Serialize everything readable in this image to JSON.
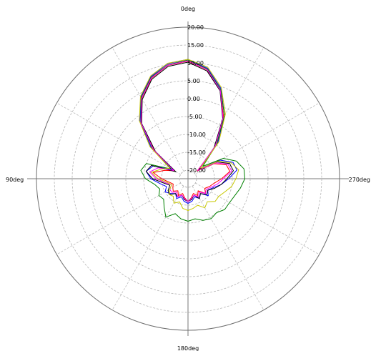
{
  "chart_data": {
    "type": "line",
    "coordinate_system": "polar",
    "angle_unit": "deg",
    "angle_direction": "counter-clockwise",
    "zero_angle_position": "top",
    "angle_labels": [
      "0deg",
      "90deg",
      "180deg",
      "270deg"
    ],
    "radial_range": [
      -20,
      20
    ],
    "radial_ticks": [
      "20.00",
      "15.00",
      "10.00",
      "5.00",
      "0.00",
      "-5.00",
      "-10.00",
      "-15.00",
      "-20.00"
    ],
    "grid": true,
    "angles": [
      0,
      10,
      20,
      30,
      40,
      50,
      60,
      70,
      80,
      90,
      100,
      110,
      120,
      130,
      140,
      150,
      160,
      170,
      180,
      190,
      200,
      210,
      220,
      230,
      240,
      250,
      260,
      270,
      280,
      290,
      300,
      310,
      320,
      330,
      340,
      350
    ],
    "series": [
      {
        "color": "#ff0000",
        "values": [
          10.5,
          9.8,
          7.5,
          3.5,
          -2,
          -10,
          -18,
          -15.5,
          -12.5,
          -15,
          -17,
          -18,
          -17.5,
          -17,
          -18,
          -17,
          -18,
          -17,
          -16,
          -17,
          -18,
          -17,
          -18,
          -16,
          -17,
          -16,
          -15,
          -13,
          -10.5,
          -11,
          -14,
          -19,
          -10,
          -2.5,
          4,
          8.5
        ]
      },
      {
        "color": "#0000ff",
        "values": [
          11,
          10.3,
          8,
          4,
          -1.5,
          -9,
          -17.5,
          -12,
          -10.5,
          -12,
          -14.5,
          -16,
          -15,
          -16,
          -17,
          -16,
          -17,
          -16,
          -15.5,
          -16,
          -17,
          -16,
          -17,
          -15,
          -16,
          -15,
          -13,
          -11,
          -8.5,
          -9,
          -12,
          -18,
          -9.5,
          -2,
          4.5,
          9
        ]
      },
      {
        "color": "#008000",
        "values": [
          10.8,
          10,
          7.8,
          3.8,
          -1.8,
          -9.5,
          -17,
          -10,
          -9,
          -10.5,
          -13,
          -14,
          -13,
          -13.5,
          -12,
          -10,
          -12,
          -11,
          -10.5,
          -11,
          -10,
          -9.5,
          -10,
          -9,
          -9,
          -8.5,
          -7.5,
          -6.5,
          -6.5,
          -8,
          -11,
          -17,
          -10,
          -2,
          4.2,
          8.8
        ]
      },
      {
        "color": "#000000",
        "values": [
          10.2,
          9.5,
          7.2,
          3.2,
          -2.2,
          -10.5,
          -18.5,
          -11.5,
          -10.5,
          -12.5,
          -15.5,
          -17,
          -16,
          -15.5,
          -17,
          -16.5,
          -17.5,
          -16.5,
          -16,
          -16.5,
          -17.5,
          -16,
          -17,
          -15.5,
          -16,
          -14.5,
          -13,
          -11.5,
          -9.5,
          -10,
          -13,
          -18.5,
          -11,
          -3,
          3.8,
          8.2
        ]
      },
      {
        "color": "#ff00ff",
        "values": [
          10.6,
          9.9,
          7.6,
          3.6,
          -1.9,
          -9.8,
          -17.8,
          -13.5,
          -11.5,
          -13.5,
          -16,
          -17.5,
          -16.5,
          -16.5,
          -17.5,
          -16.5,
          -17.5,
          -16.8,
          -16,
          -16.8,
          -17.5,
          -16.5,
          -17.5,
          -16,
          -16.5,
          -15.5,
          -14,
          -12.5,
          -10,
          -10.5,
          -13.5,
          -18.8,
          -10.5,
          -2.8,
          4,
          8.6
        ]
      },
      {
        "color": "#c8c800",
        "values": [
          11,
          10.4,
          8.2,
          4.2,
          -1.2,
          -8.5,
          -16.5,
          -14.5,
          -12,
          -14,
          -16.5,
          -17.5,
          -16.5,
          -15.5,
          -16,
          -14.5,
          -15.5,
          -14,
          -13.5,
          -14,
          -14.5,
          -13,
          -14,
          -12.5,
          -12.5,
          -11.5,
          -10,
          -9,
          -8,
          -9.5,
          -12.5,
          -18,
          -9,
          -1.5,
          4.8,
          9.3
        ]
      }
    ]
  }
}
